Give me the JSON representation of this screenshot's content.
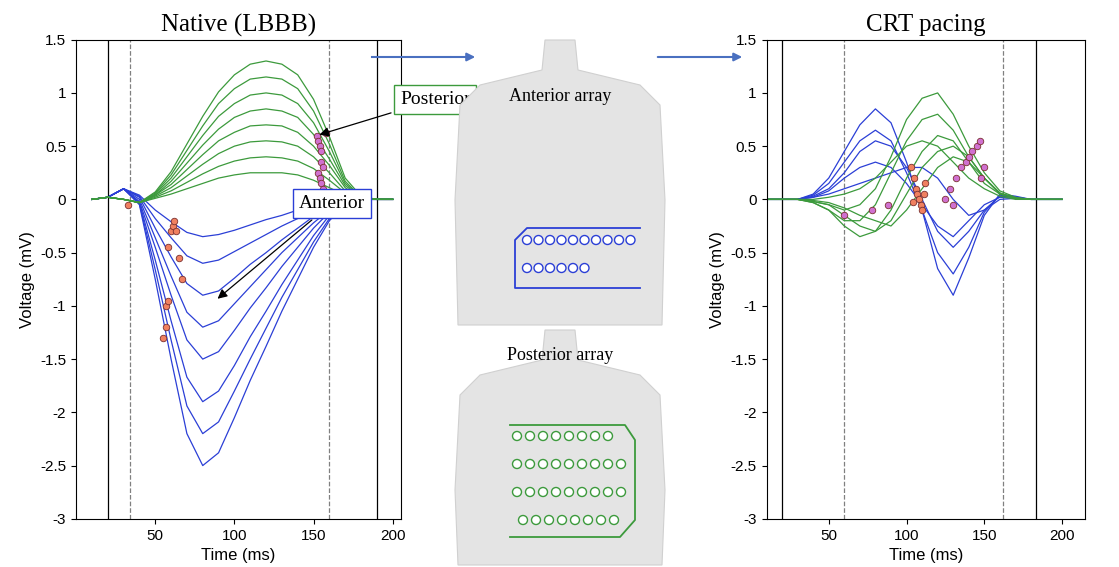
{
  "chart_data": [
    {
      "type": "line",
      "title": "Native (LBBB)",
      "x_label": "Time (ms)",
      "y_label": "Voltage (mV)",
      "xlim": [
        0,
        205
      ],
      "xticks": [
        50,
        100,
        150,
        200
      ],
      "ylim": [
        -3,
        1.5
      ],
      "yticks": [
        -3,
        -2.5,
        -2,
        -1.5,
        -1,
        -0.5,
        0,
        0.5,
        1,
        1.5
      ],
      "x": [
        10,
        20,
        30,
        40,
        50,
        60,
        70,
        80,
        90,
        100,
        110,
        120,
        130,
        140,
        150,
        160,
        170,
        180,
        190,
        200
      ],
      "series": [
        {
          "color": "#2b3fd6",
          "values": [
            0,
            0.02,
            0.1,
            -0.05,
            -0.75,
            -1.5,
            -2.2,
            -2.5,
            -2.38,
            -2.05,
            -1.7,
            -1.38,
            -1.05,
            -0.75,
            -0.45,
            -0.2,
            -0.05,
            0,
            0,
            0
          ]
        },
        {
          "color": "#2b3fd6",
          "values": [
            0,
            0.02,
            0.1,
            -0.04,
            -0.66,
            -1.32,
            -1.94,
            -2.2,
            -2.09,
            -1.8,
            -1.5,
            -1.21,
            -0.92,
            -0.66,
            -0.4,
            -0.18,
            -0.04,
            0,
            0,
            0
          ]
        },
        {
          "color": "#2b3fd6",
          "values": [
            0,
            0.02,
            0.1,
            -0.03,
            -0.57,
            -1.14,
            -1.67,
            -1.9,
            -1.8,
            -1.56,
            -1.29,
            -1.05,
            -0.8,
            -0.57,
            -0.34,
            -0.15,
            -0.04,
            0,
            0,
            0
          ]
        },
        {
          "color": "#2b3fd6",
          "values": [
            0,
            0.02,
            0.1,
            -0.02,
            -0.45,
            -0.9,
            -1.32,
            -1.5,
            -1.43,
            -1.23,
            -1.02,
            -0.83,
            -0.63,
            -0.45,
            -0.27,
            -0.12,
            -0.03,
            0,
            0,
            0
          ]
        },
        {
          "color": "#2b3fd6",
          "values": [
            0,
            0.02,
            0.1,
            0,
            -0.36,
            -0.72,
            -1.06,
            -1.2,
            -1.14,
            -0.98,
            -0.82,
            -0.66,
            -0.5,
            -0.36,
            -0.22,
            -0.1,
            -0.02,
            0,
            0,
            0
          ]
        },
        {
          "color": "#2b3fd6",
          "values": [
            0,
            0.02,
            0.1,
            0.02,
            -0.27,
            -0.54,
            -0.79,
            -0.9,
            -0.86,
            -0.74,
            -0.61,
            -0.5,
            -0.38,
            -0.27,
            -0.16,
            -0.07,
            -0.02,
            0,
            0,
            0
          ]
        },
        {
          "color": "#2b3fd6",
          "values": [
            0,
            0.02,
            0.1,
            0.03,
            -0.18,
            -0.36,
            -0.53,
            -0.6,
            -0.57,
            -0.49,
            -0.41,
            -0.33,
            -0.25,
            -0.18,
            -0.11,
            -0.05,
            -0.01,
            0,
            0,
            0
          ]
        },
        {
          "color": "#2b3fd6",
          "values": [
            0,
            0.02,
            0.1,
            0.04,
            -0.1,
            -0.21,
            -0.31,
            -0.35,
            -0.33,
            -0.29,
            -0.24,
            -0.19,
            -0.15,
            -0.1,
            -0.06,
            -0.03,
            -0.01,
            0,
            0,
            0
          ]
        },
        {
          "color": "#3c9a3c",
          "values": [
            0,
            0.02,
            0,
            -0.03,
            0.07,
            0.26,
            0.52,
            0.78,
            1.01,
            1.17,
            1.27,
            1.3,
            1.27,
            1.17,
            0.94,
            0.59,
            0.2,
            0.03,
            0,
            0
          ]
        },
        {
          "color": "#3c9a3c",
          "values": [
            0,
            0.02,
            0,
            -0.03,
            0.06,
            0.23,
            0.46,
            0.69,
            0.9,
            1.04,
            1.13,
            1.15,
            1.13,
            1.04,
            0.83,
            0.52,
            0.17,
            0.02,
            0,
            0
          ]
        },
        {
          "color": "#3c9a3c",
          "values": [
            0,
            0.02,
            0,
            -0.03,
            0.05,
            0.2,
            0.4,
            0.6,
            0.78,
            0.9,
            0.98,
            1.0,
            0.98,
            0.9,
            0.72,
            0.45,
            0.15,
            0.02,
            0,
            0
          ]
        },
        {
          "color": "#3c9a3c",
          "values": [
            0,
            0.02,
            0,
            -0.03,
            0.04,
            0.17,
            0.34,
            0.51,
            0.66,
            0.77,
            0.83,
            0.85,
            0.83,
            0.77,
            0.61,
            0.38,
            0.13,
            0.02,
            0,
            0
          ]
        },
        {
          "color": "#3c9a3c",
          "values": [
            0,
            0.02,
            0,
            -0.03,
            0.04,
            0.14,
            0.28,
            0.42,
            0.55,
            0.63,
            0.69,
            0.7,
            0.69,
            0.63,
            0.5,
            0.32,
            0.11,
            0.01,
            0,
            0
          ]
        },
        {
          "color": "#3c9a3c",
          "values": [
            0,
            0.02,
            0,
            -0.03,
            0.03,
            0.11,
            0.22,
            0.33,
            0.43,
            0.5,
            0.54,
            0.55,
            0.54,
            0.5,
            0.4,
            0.25,
            0.08,
            0.01,
            0,
            0
          ]
        },
        {
          "color": "#3c9a3c",
          "values": [
            0,
            0.02,
            0,
            -0.03,
            0.02,
            0.08,
            0.16,
            0.24,
            0.31,
            0.36,
            0.39,
            0.4,
            0.39,
            0.36,
            0.29,
            0.18,
            0.06,
            0.01,
            0,
            0
          ]
        },
        {
          "color": "#3c9a3c",
          "values": [
            0,
            0.02,
            0,
            -0.03,
            0.01,
            0.05,
            0.1,
            0.15,
            0.2,
            0.23,
            0.25,
            0.25,
            0.25,
            0.23,
            0.18,
            0.11,
            0.04,
            0,
            0,
            0
          ]
        },
        {
          "type": "scatter",
          "marker": "o",
          "color": "#f08060",
          "x": [
            33,
            55,
            57,
            57,
            58,
            58,
            60,
            61,
            62,
            63,
            65,
            67
          ],
          "values": [
            -0.05,
            -1.3,
            -1.2,
            -1.0,
            -0.95,
            -0.45,
            -0.3,
            -0.25,
            -0.2,
            -0.3,
            -0.55,
            -0.75
          ]
        },
        {
          "type": "scatter",
          "marker": "o",
          "color": "#d070d0",
          "x": [
            152,
            153,
            154,
            155,
            155,
            156,
            153,
            154,
            155,
            156,
            157,
            158
          ],
          "values": [
            0.6,
            0.55,
            0.5,
            0.45,
            0.35,
            0.3,
            0.25,
            0.2,
            0.15,
            0.1,
            0.05,
            0.62
          ]
        }
      ],
      "vlines": [
        {
          "x": 20,
          "line_style": "solid"
        },
        {
          "x": 190,
          "line_style": "solid"
        },
        {
          "x": 34,
          "line_style": "dashed"
        },
        {
          "x": 160,
          "line_style": "dashed"
        }
      ],
      "annotations": [
        {
          "text": "Posterior",
          "x": 152,
          "y": 0.6,
          "color": "#3c9a3c"
        },
        {
          "text": "Anterior",
          "x": 88,
          "y": -0.95,
          "color": "#2b3fd6"
        }
      ]
    },
    {
      "type": "line",
      "title": "CRT pacing",
      "x_label": "Time (ms)",
      "y_label": "Voltage (mV)",
      "xlim": [
        10,
        215
      ],
      "xticks": [
        50,
        100,
        150,
        200
      ],
      "ylim": [
        -3,
        1.5
      ],
      "yticks": [
        -3,
        -2.5,
        -2,
        -1.5,
        -1,
        -0.5,
        0,
        0.5,
        1,
        1.5
      ],
      "x": [
        10,
        20,
        30,
        40,
        50,
        60,
        70,
        80,
        90,
        100,
        110,
        120,
        130,
        140,
        150,
        160,
        170,
        180,
        190,
        200
      ],
      "series": [
        {
          "color": "#2b3fd6",
          "values": [
            0,
            0,
            0,
            0.05,
            0.2,
            0.45,
            0.7,
            0.85,
            0.72,
            0.35,
            -0.1,
            -0.65,
            -0.9,
            -0.55,
            -0.15,
            0.05,
            0.03,
            0,
            0,
            0
          ]
        },
        {
          "color": "#2b3fd6",
          "values": [
            0,
            0,
            0,
            0.04,
            0.15,
            0.35,
            0.55,
            0.65,
            0.55,
            0.25,
            -0.1,
            -0.5,
            -0.7,
            -0.45,
            -0.12,
            0.04,
            0.02,
            0,
            0,
            0
          ]
        },
        {
          "color": "#2b3fd6",
          "values": [
            0,
            0,
            0,
            0.03,
            0.1,
            0.25,
            0.45,
            0.55,
            0.5,
            0.3,
            0,
            -0.3,
            -0.45,
            -0.3,
            -0.1,
            0.03,
            0.02,
            0,
            0,
            0
          ]
        },
        {
          "color": "#2b3fd6",
          "values": [
            0,
            0,
            0,
            0.02,
            0.08,
            0.2,
            0.3,
            0.35,
            0.3,
            0.15,
            -0.05,
            -0.25,
            -0.35,
            -0.2,
            -0.05,
            0.02,
            0.01,
            0,
            0,
            0
          ]
        },
        {
          "color": "#2b3fd6",
          "values": [
            0,
            0,
            0,
            0.02,
            0.05,
            0.1,
            0.15,
            0.2,
            0.25,
            0.3,
            0.3,
            0.2,
            0,
            -0.15,
            -0.1,
            0,
            0.01,
            0,
            0,
            0
          ]
        },
        {
          "color": "#3c9a3c",
          "values": [
            0,
            0,
            0,
            -0.02,
            -0.05,
            -0.1,
            -0.05,
            0.1,
            0.4,
            0.75,
            0.95,
            1.0,
            0.8,
            0.5,
            0.25,
            0.08,
            0.02,
            0,
            0,
            0
          ]
        },
        {
          "color": "#3c9a3c",
          "values": [
            0,
            0,
            0,
            -0.03,
            -0.1,
            -0.2,
            -0.2,
            -0.05,
            0.25,
            0.55,
            0.75,
            0.8,
            0.65,
            0.4,
            0.2,
            0.06,
            0.01,
            0,
            0,
            0
          ]
        },
        {
          "color": "#3c9a3c",
          "values": [
            0,
            0,
            0,
            -0.03,
            -0.1,
            -0.25,
            -0.35,
            -0.3,
            -0.1,
            0.2,
            0.45,
            0.6,
            0.55,
            0.35,
            0.15,
            0.05,
            0.01,
            0,
            0,
            0
          ]
        },
        {
          "color": "#3c9a3c",
          "values": [
            0,
            0,
            0,
            -0.02,
            -0.05,
            -0.15,
            -0.25,
            -0.3,
            -0.2,
            0.05,
            0.3,
            0.45,
            0.5,
            0.4,
            0.2,
            0.06,
            0.01,
            0,
            0,
            0
          ]
        },
        {
          "color": "#3c9a3c",
          "values": [
            0,
            0,
            0,
            -0.01,
            -0.03,
            -0.08,
            -0.15,
            -0.2,
            -0.25,
            -0.1,
            0.1,
            0.3,
            0.4,
            0.35,
            0.2,
            0.05,
            0.01,
            0,
            0,
            0
          ]
        },
        {
          "color": "#3c9a3c",
          "values": [
            0,
            0,
            0,
            0,
            0.02,
            0.05,
            0.1,
            0.2,
            0.35,
            0.5,
            0.55,
            0.5,
            0.35,
            0.2,
            0.1,
            0.03,
            0,
            0,
            0,
            0
          ]
        },
        {
          "type": "scatter",
          "marker": "o",
          "color": "#f08060",
          "x": [
            105,
            106,
            107,
            108,
            109,
            110,
            111,
            112,
            104,
            103
          ],
          "values": [
            0.2,
            0.1,
            0.05,
            0,
            -0.05,
            -0.1,
            0.05,
            0.15,
            -0.02,
            0.3
          ]
        },
        {
          "type": "scatter",
          "marker": "o",
          "color": "#d070d0",
          "x": [
            125,
            128,
            130,
            132,
            135,
            138,
            140,
            142,
            145,
            147,
            148,
            150,
            88,
            78,
            60
          ],
          "values": [
            0,
            0.1,
            -0.05,
            0.2,
            0.3,
            0.35,
            0.4,
            0.45,
            0.5,
            0.55,
            0.2,
            0.3,
            -0.05,
            -0.1,
            -0.15
          ]
        }
      ],
      "vlines": [
        {
          "x": 20,
          "line_style": "solid"
        },
        {
          "x": 183,
          "line_style": "solid"
        },
        {
          "x": 60,
          "line_style": "dashed"
        },
        {
          "x": 162,
          "line_style": "dashed"
        }
      ],
      "annotations": []
    }
  ],
  "diagram": {
    "arrays": [
      {
        "label": "Anterior array",
        "color": "#2b3fd6",
        "rows": [
          10,
          6
        ]
      },
      {
        "label": "Posterior array",
        "color": "#3c9a3c",
        "rows": [
          8,
          9,
          9,
          8
        ]
      }
    ]
  }
}
